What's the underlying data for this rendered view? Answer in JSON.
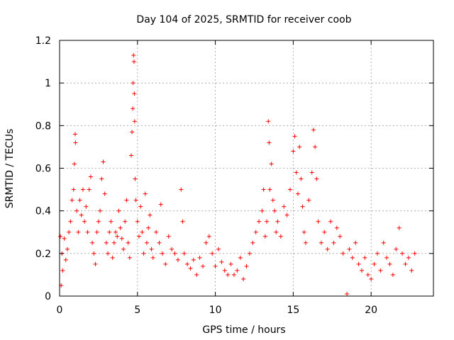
{
  "chart_data": {
    "type": "scatter",
    "title": "Day 104 of 2025, SRMTID for receiver coob",
    "xlabel": "GPS time / hours",
    "ylabel": "SRMTID / TECUs",
    "xlim": [
      0,
      24
    ],
    "ylim": [
      0,
      1.2
    ],
    "grid": true,
    "marker": "+",
    "marker_color": "#ff0000",
    "x_ticks": [
      {
        "value": 0,
        "label": "0"
      },
      {
        "value": 5,
        "label": "5"
      },
      {
        "value": 10,
        "label": "10"
      },
      {
        "value": 15,
        "label": "15"
      },
      {
        "value": 20,
        "label": "20"
      }
    ],
    "y_ticks": [
      {
        "value": 0,
        "label": "0"
      },
      {
        "value": 0.2,
        "label": "0.2"
      },
      {
        "value": 0.4,
        "label": "0.4"
      },
      {
        "value": 0.6,
        "label": "0.6"
      },
      {
        "value": 0.8,
        "label": "0.8"
      },
      {
        "value": 1.0,
        "label": "1"
      },
      {
        "value": 1.2,
        "label": "1.2"
      }
    ],
    "series": [
      {
        "name": "SRMTID",
        "points": [
          [
            0.05,
            0.28
          ],
          [
            0.1,
            0.05
          ],
          [
            0.15,
            0.2
          ],
          [
            0.2,
            0.12
          ],
          [
            0.3,
            0.27
          ],
          [
            0.4,
            0.17
          ],
          [
            0.5,
            0.22
          ],
          [
            0.6,
            0.3
          ],
          [
            0.7,
            0.35
          ],
          [
            0.8,
            0.45
          ],
          [
            0.9,
            0.5
          ],
          [
            0.95,
            0.62
          ],
          [
            1.0,
            0.76
          ],
          [
            1.02,
            0.72
          ],
          [
            1.1,
            0.4
          ],
          [
            1.2,
            0.3
          ],
          [
            1.3,
            0.45
          ],
          [
            1.4,
            0.38
          ],
          [
            1.5,
            0.5
          ],
          [
            1.6,
            0.35
          ],
          [
            1.7,
            0.42
          ],
          [
            1.8,
            0.3
          ],
          [
            1.9,
            0.5
          ],
          [
            2.0,
            0.56
          ],
          [
            2.1,
            0.25
          ],
          [
            2.2,
            0.2
          ],
          [
            2.3,
            0.15
          ],
          [
            2.4,
            0.3
          ],
          [
            2.5,
            0.35
          ],
          [
            2.6,
            0.4
          ],
          [
            2.7,
            0.55
          ],
          [
            2.8,
            0.63
          ],
          [
            2.9,
            0.48
          ],
          [
            3.0,
            0.25
          ],
          [
            3.1,
            0.2
          ],
          [
            3.2,
            0.3
          ],
          [
            3.3,
            0.35
          ],
          [
            3.4,
            0.18
          ],
          [
            3.5,
            0.25
          ],
          [
            3.6,
            0.3
          ],
          [
            3.7,
            0.28
          ],
          [
            3.8,
            0.4
          ],
          [
            3.9,
            0.32
          ],
          [
            4.0,
            0.27
          ],
          [
            4.1,
            0.22
          ],
          [
            4.2,
            0.35
          ],
          [
            4.3,
            0.45
          ],
          [
            4.4,
            0.25
          ],
          [
            4.5,
            0.18
          ],
          [
            4.6,
            0.66
          ],
          [
            4.65,
            0.77
          ],
          [
            4.7,
            0.88
          ],
          [
            4.72,
            1.0
          ],
          [
            4.75,
            1.13
          ],
          [
            4.78,
            1.1
          ],
          [
            4.8,
            0.95
          ],
          [
            4.82,
            0.82
          ],
          [
            4.85,
            0.55
          ],
          [
            4.9,
            0.45
          ],
          [
            5.0,
            0.35
          ],
          [
            5.1,
            0.28
          ],
          [
            5.2,
            0.42
          ],
          [
            5.3,
            0.3
          ],
          [
            5.4,
            0.2
          ],
          [
            5.5,
            0.48
          ],
          [
            5.6,
            0.25
          ],
          [
            5.7,
            0.32
          ],
          [
            5.8,
            0.38
          ],
          [
            5.9,
            0.22
          ],
          [
            6.0,
            0.18
          ],
          [
            6.2,
            0.3
          ],
          [
            6.4,
            0.25
          ],
          [
            6.5,
            0.43
          ],
          [
            6.6,
            0.2
          ],
          [
            6.8,
            0.15
          ],
          [
            7.0,
            0.28
          ],
          [
            7.2,
            0.22
          ],
          [
            7.4,
            0.2
          ],
          [
            7.6,
            0.17
          ],
          [
            7.8,
            0.5
          ],
          [
            7.9,
            0.35
          ],
          [
            8.0,
            0.2
          ],
          [
            8.2,
            0.15
          ],
          [
            8.4,
            0.13
          ],
          [
            8.6,
            0.17
          ],
          [
            8.8,
            0.1
          ],
          [
            9.0,
            0.18
          ],
          [
            9.2,
            0.14
          ],
          [
            9.4,
            0.25
          ],
          [
            9.6,
            0.28
          ],
          [
            9.8,
            0.2
          ],
          [
            10.0,
            0.14
          ],
          [
            10.2,
            0.22
          ],
          [
            10.4,
            0.16
          ],
          [
            10.6,
            0.12
          ],
          [
            10.8,
            0.1
          ],
          [
            11.0,
            0.15
          ],
          [
            11.2,
            0.1
          ],
          [
            11.4,
            0.12
          ],
          [
            11.6,
            0.18
          ],
          [
            11.8,
            0.08
          ],
          [
            12.0,
            0.14
          ],
          [
            12.2,
            0.2
          ],
          [
            12.4,
            0.25
          ],
          [
            12.6,
            0.3
          ],
          [
            12.8,
            0.35
          ],
          [
            13.0,
            0.4
          ],
          [
            13.1,
            0.5
          ],
          [
            13.2,
            0.28
          ],
          [
            13.3,
            0.35
          ],
          [
            13.4,
            0.82
          ],
          [
            13.45,
            0.72
          ],
          [
            13.5,
            0.5
          ],
          [
            13.6,
            0.62
          ],
          [
            13.7,
            0.45
          ],
          [
            13.8,
            0.4
          ],
          [
            13.9,
            0.3
          ],
          [
            14.0,
            0.35
          ],
          [
            14.2,
            0.28
          ],
          [
            14.4,
            0.42
          ],
          [
            14.6,
            0.38
          ],
          [
            14.8,
            0.5
          ],
          [
            15.0,
            0.68
          ],
          [
            15.1,
            0.75
          ],
          [
            15.2,
            0.58
          ],
          [
            15.3,
            0.48
          ],
          [
            15.4,
            0.7
          ],
          [
            15.5,
            0.55
          ],
          [
            15.6,
            0.42
          ],
          [
            15.7,
            0.3
          ],
          [
            15.8,
            0.25
          ],
          [
            16.0,
            0.45
          ],
          [
            16.2,
            0.58
          ],
          [
            16.3,
            0.78
          ],
          [
            16.4,
            0.7
          ],
          [
            16.5,
            0.55
          ],
          [
            16.6,
            0.35
          ],
          [
            16.8,
            0.25
          ],
          [
            17.0,
            0.3
          ],
          [
            17.2,
            0.22
          ],
          [
            17.4,
            0.35
          ],
          [
            17.6,
            0.25
          ],
          [
            17.8,
            0.32
          ],
          [
            18.0,
            0.28
          ],
          [
            18.2,
            0.2
          ],
          [
            18.45,
            0.01
          ],
          [
            18.6,
            0.22
          ],
          [
            18.8,
            0.18
          ],
          [
            19.0,
            0.25
          ],
          [
            19.2,
            0.15
          ],
          [
            19.4,
            0.12
          ],
          [
            19.6,
            0.18
          ],
          [
            19.8,
            0.1
          ],
          [
            20.0,
            0.08
          ],
          [
            20.2,
            0.15
          ],
          [
            20.4,
            0.2
          ],
          [
            20.6,
            0.12
          ],
          [
            20.8,
            0.25
          ],
          [
            21.0,
            0.18
          ],
          [
            21.2,
            0.15
          ],
          [
            21.4,
            0.1
          ],
          [
            21.6,
            0.22
          ],
          [
            21.8,
            0.32
          ],
          [
            22.0,
            0.2
          ],
          [
            22.2,
            0.15
          ],
          [
            22.4,
            0.18
          ],
          [
            22.6,
            0.12
          ],
          [
            22.8,
            0.2
          ]
        ]
      }
    ]
  }
}
